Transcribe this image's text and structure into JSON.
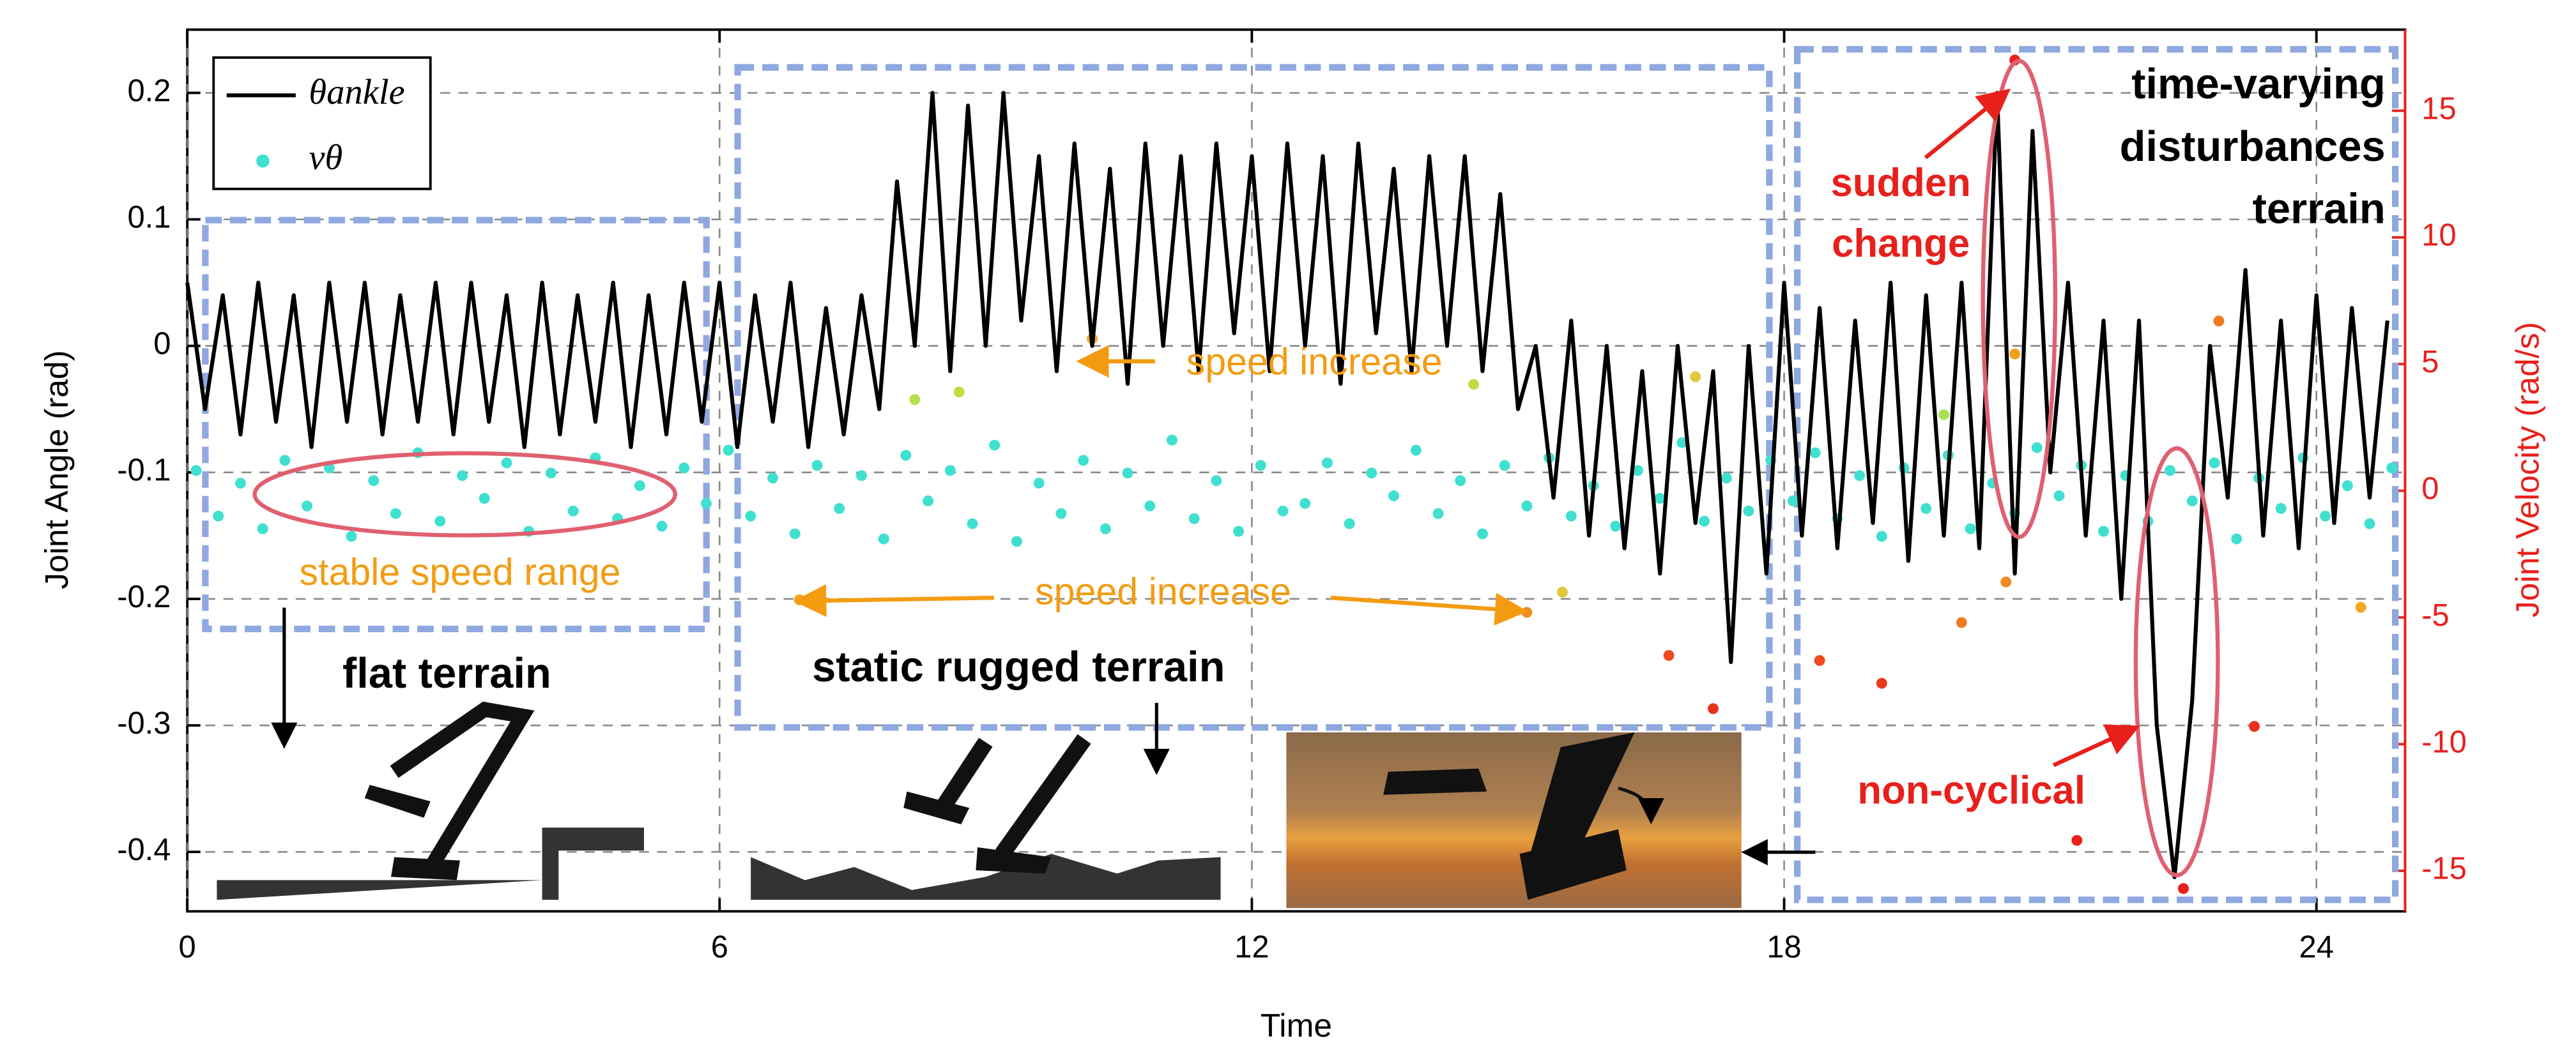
{
  "chart_data": {
    "type": "line",
    "xlabel": "Time",
    "ylabel": "Joint Angle (rad)",
    "y2label": "Joint Velocity  (rad/s)",
    "y2color": "#e8201c",
    "xlim": [
      0,
      25
    ],
    "ylim": [
      -0.447,
      0.25
    ],
    "y2lim": [
      -16.6,
      18.2
    ],
    "xticks": [
      0,
      6,
      12,
      18,
      24
    ],
    "yticks": [
      -0.4,
      -0.3,
      -0.2,
      -0.1,
      0,
      0.1,
      0.2
    ],
    "y2ticks": [
      -15,
      -10,
      -5,
      0,
      5,
      10,
      15
    ],
    "grid": true,
    "legend": "upper left",
    "series": [
      {
        "name": "θankle",
        "type": "line",
        "color": "#000000",
        "x": [
          0,
          0.2,
          0.4,
          0.6,
          0.8,
          1,
          1.2,
          1.4,
          1.6,
          1.8,
          2,
          2.2,
          2.4,
          2.6,
          2.8,
          3,
          3.2,
          3.4,
          3.6,
          3.8,
          4,
          4.2,
          4.4,
          4.6,
          4.8,
          5,
          5.2,
          5.4,
          5.6,
          5.8,
          6,
          6.2,
          6.4,
          6.6,
          6.8,
          7,
          7.2,
          7.4,
          7.6,
          7.8,
          8,
          8.2,
          8.4,
          8.6,
          8.8,
          9,
          9.2,
          9.4,
          9.6,
          9.8,
          10,
          10.2,
          10.4,
          10.6,
          10.8,
          11,
          11.2,
          11.4,
          11.6,
          11.8,
          12,
          12.2,
          12.4,
          12.6,
          12.8,
          13,
          13.2,
          13.4,
          13.6,
          13.8,
          14,
          14.2,
          14.4,
          14.6,
          14.8,
          15,
          15.2,
          15.4,
          15.6,
          15.8,
          16,
          16.2,
          16.4,
          16.6,
          16.8,
          17,
          17.2,
          17.4,
          17.6,
          17.8,
          18,
          18.2,
          18.4,
          18.6,
          18.8,
          19,
          19.2,
          19.4,
          19.6,
          19.8,
          20,
          20.2,
          20.4,
          20.6,
          20.8,
          21,
          21.2,
          21.4,
          21.6,
          21.8,
          22,
          22.2,
          22.4,
          22.6,
          22.8,
          23,
          23.2,
          23.4,
          23.6,
          23.8,
          24,
          24.2,
          24.4,
          24.6,
          24.8
        ],
        "values": [
          0.05,
          -0.05,
          0.04,
          -0.07,
          0.05,
          -0.06,
          0.04,
          -0.08,
          0.05,
          -0.06,
          0.05,
          -0.07,
          0.04,
          -0.06,
          0.05,
          -0.07,
          0.05,
          -0.06,
          0.04,
          -0.08,
          0.05,
          -0.07,
          0.04,
          -0.06,
          0.05,
          -0.08,
          0.04,
          -0.07,
          0.05,
          -0.06,
          0.05,
          -0.08,
          0.04,
          -0.06,
          0.05,
          -0.08,
          0.03,
          -0.07,
          0.04,
          -0.05,
          0.13,
          0.0,
          0.2,
          -0.02,
          0.19,
          0.0,
          0.2,
          0.02,
          0.15,
          -0.02,
          0.16,
          0.0,
          0.14,
          -0.03,
          0.16,
          0.0,
          0.15,
          -0.02,
          0.16,
          0.01,
          0.15,
          -0.02,
          0.16,
          0.0,
          0.15,
          -0.03,
          0.16,
          0.01,
          0.14,
          -0.02,
          0.15,
          0.0,
          0.15,
          -0.02,
          0.12,
          -0.05,
          0.0,
          -0.12,
          0.02,
          -0.15,
          0.0,
          -0.16,
          -0.02,
          -0.18,
          0.0,
          -0.14,
          -0.02,
          -0.25,
          0.0,
          -0.18,
          0.05,
          -0.15,
          0.03,
          -0.16,
          0.02,
          -0.14,
          0.05,
          -0.17,
          0.04,
          -0.15,
          0.05,
          -0.16,
          0.2,
          -0.18,
          0.17,
          -0.1,
          0.05,
          -0.15,
          0.02,
          -0.2,
          0.02,
          -0.3,
          -0.42,
          -0.28,
          0.0,
          -0.12,
          0.06,
          -0.15,
          0.02,
          -0.16,
          0.04,
          -0.14,
          0.03,
          -0.12,
          0.02
        ]
      },
      {
        "name": "vθ",
        "type": "scatter",
        "axis": "y2",
        "color": "#40e0d0",
        "x": [
          0.1,
          0.35,
          0.6,
          0.85,
          1.1,
          1.35,
          1.6,
          1.85,
          2.1,
          2.35,
          2.6,
          2.85,
          3.1,
          3.35,
          3.6,
          3.85,
          4.1,
          4.35,
          4.6,
          4.85,
          5.1,
          5.35,
          5.6,
          5.85,
          6.1,
          6.35,
          6.6,
          6.85,
          7.1,
          7.35,
          7.6,
          7.85,
          8.1,
          8.35,
          8.6,
          8.85,
          9.1,
          9.35,
          9.6,
          9.85,
          10.1,
          10.35,
          10.6,
          10.85,
          11.1,
          11.35,
          11.6,
          11.85,
          12.1,
          12.35,
          12.6,
          12.85,
          13.1,
          13.35,
          13.6,
          13.85,
          14.1,
          14.35,
          14.6,
          14.85,
          15.1,
          15.35,
          15.6,
          15.85,
          16.1,
          16.35,
          16.6,
          16.85,
          17.1,
          17.35,
          17.6,
          17.85,
          18.1,
          18.35,
          18.6,
          18.85,
          19.1,
          19.35,
          19.6,
          19.85,
          20.1,
          20.35,
          20.6,
          20.85,
          21.1,
          21.35,
          21.6,
          21.85,
          22.1,
          22.35,
          22.6,
          22.85,
          23.1,
          23.35,
          23.6,
          23.85,
          24.1,
          24.35,
          24.6,
          24.85,
          10.2,
          6.9,
          15.1,
          8.2,
          8.7,
          14.5,
          16.7,
          17.2,
          18.4,
          19.1,
          20.0,
          20.6,
          20.6,
          20.5,
          22.5,
          21.3,
          23.3,
          22.9,
          24.5,
          17.0,
          15.5,
          19.8
        ],
        "values": [
          0.8,
          -1.0,
          0.3,
          -1.5,
          1.2,
          -0.6,
          0.9,
          -1.8,
          0.4,
          -0.9,
          1.5,
          -1.2,
          0.6,
          -0.3,
          1.1,
          -1.6,
          0.7,
          -0.8,
          1.3,
          -1.1,
          0.2,
          -1.4,
          0.9,
          -0.5,
          1.6,
          -1.0,
          0.5,
          -1.7,
          1.0,
          -0.7,
          0.6,
          -1.9,
          1.4,
          -0.4,
          0.8,
          -1.3,
          1.8,
          -2.0,
          0.3,
          -0.9,
          1.2,
          -1.5,
          0.7,
          -0.6,
          2.0,
          -1.1,
          0.4,
          -1.6,
          1.0,
          -0.8,
          -0.5,
          1.1,
          -1.3,
          0.7,
          -0.2,
          1.6,
          -0.9,
          0.4,
          -1.7,
          1.0,
          -0.6,
          1.3,
          -1.0,
          0.2,
          -1.4,
          0.8,
          -0.3,
          1.9,
          -1.2,
          0.5,
          -0.8,
          1.2,
          -0.4,
          1.5,
          -1.1,
          0.6,
          -1.8,
          0.9,
          -0.7,
          1.4,
          -1.5,
          0.3,
          -0.9,
          1.7,
          -0.2,
          1.0,
          -1.6,
          0.6,
          -1.2,
          0.8,
          -0.4,
          1.1,
          -1.9,
          0.5,
          -0.7,
          1.3,
          -1.0,
          0.2,
          -1.3,
          0.9,
          6,
          -4.3,
          -4.8,
          3.6,
          3.9,
          4.2,
          -6.5,
          -8.6,
          -6.7,
          -7.6,
          -5.2,
          17.0,
          5.4,
          -3.6,
          -15.7,
          -13.8,
          -9.3,
          6.7,
          -4.6,
          4.5,
          -4.0,
          3.0
        ],
        "point_colors": [
          "#40e0d0",
          "#40e0d0",
          "#40e0d0",
          "#40e0d0",
          "#40e0d0",
          "#40e0d0",
          "#40e0d0",
          "#40e0d0",
          "#40e0d0",
          "#40e0d0",
          "#40e0d0",
          "#40e0d0",
          "#40e0d0",
          "#40e0d0",
          "#40e0d0",
          "#40e0d0",
          "#40e0d0",
          "#40e0d0",
          "#40e0d0",
          "#40e0d0",
          "#40e0d0",
          "#40e0d0",
          "#40e0d0",
          "#40e0d0",
          "#40e0d0",
          "#40e0d0",
          "#40e0d0",
          "#40e0d0",
          "#40e0d0",
          "#40e0d0",
          "#40e0d0",
          "#40e0d0",
          "#40e0d0",
          "#40e0d0",
          "#40e0d0",
          "#40e0d0",
          "#40e0d0",
          "#40e0d0",
          "#40e0d0",
          "#40e0d0",
          "#40e0d0",
          "#40e0d0",
          "#40e0d0",
          "#40e0d0",
          "#40e0d0",
          "#40e0d0",
          "#40e0d0",
          "#40e0d0",
          "#40e0d0",
          "#40e0d0",
          "#40e0d0",
          "#40e0d0",
          "#40e0d0",
          "#40e0d0",
          "#40e0d0",
          "#40e0d0",
          "#40e0d0",
          "#40e0d0",
          "#40e0d0",
          "#40e0d0",
          "#40e0d0",
          "#40e0d0",
          "#40e0d0",
          "#40e0d0",
          "#40e0d0",
          "#40e0d0",
          "#40e0d0",
          "#40e0d0",
          "#40e0d0",
          "#40e0d0",
          "#40e0d0",
          "#40e0d0",
          "#40e0d0",
          "#40e0d0",
          "#40e0d0",
          "#40e0d0",
          "#40e0d0",
          "#40e0d0",
          "#40e0d0",
          "#40e0d0",
          "#40e0d0",
          "#40e0d0",
          "#40e0d0",
          "#40e0d0",
          "#40e0d0",
          "#40e0d0",
          "#40e0d0",
          "#40e0d0",
          "#40e0d0",
          "#40e0d0",
          "#40e0d0",
          "#40e0d0",
          "#40e0d0",
          "#40e0d0",
          "#40e0d0",
          "#40e0d0",
          "#40e0d0",
          "#40e0d0",
          "#40e0d0",
          "#40e0d0",
          "#f5a623",
          "#f5a623",
          "#f08a24",
          "#b5e04a",
          "#c8d840",
          "#c8d840",
          "#f04a20",
          "#e8301c",
          "#f04a20",
          "#e83a1c",
          "#f07a24",
          "#e8201c",
          "#f0a020",
          "#f08a24",
          "#e8201c",
          "#e8201c",
          "#e8301c",
          "#f07a24",
          "#f5a623",
          "#e0c838",
          "#e0c838",
          "#a8e050"
        ]
      }
    ],
    "annotations": [
      {
        "lines": [
          "speed increase"
        ],
        "color": "#f39c12",
        "bold": false
      },
      {
        "lines": [
          "stable speed range"
        ],
        "color": "#f39c12",
        "bold": false
      },
      {
        "lines": [
          "speed increase"
        ],
        "color": "#f39c12",
        "bold": false
      },
      {
        "lines": [
          "flat terrain"
        ],
        "color": "#000000",
        "bold": true
      },
      {
        "lines": [
          "static rugged terrain"
        ],
        "color": "#000000",
        "bold": true
      },
      {
        "lines": [
          "sudden",
          "change"
        ],
        "color": "#e8201c",
        "bold": true
      },
      {
        "lines": [
          "time-varying",
          "disturbances",
          "terrain"
        ],
        "color": "#000000",
        "bold": true
      },
      {
        "lines": [
          "non-cyclical"
        ],
        "color": "#e8201c",
        "bold": true
      }
    ]
  }
}
